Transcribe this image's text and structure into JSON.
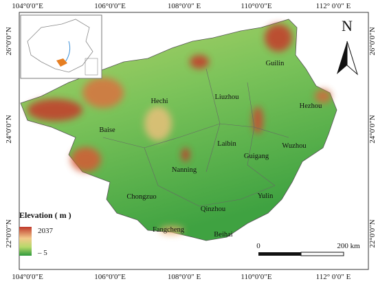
{
  "map": {
    "lon_labels": [
      "104°0′0″E",
      "106°0′0″E",
      "108°0′0″ E",
      "110°0′0″E",
      "112° 0′0″ E"
    ],
    "lat_labels": [
      "26°0′0″N",
      "24°0′0″N",
      "22°0′0″N"
    ],
    "cities": [
      "Guilin",
      "Hechi",
      "Liuzhou",
      "Hezhou",
      "Baise",
      "Laibin",
      "Wuzhou",
      "Guigang",
      "Nanning",
      "Chongzuo",
      "Yulin",
      "Qinzhou",
      "Fangcheng",
      "Beihai"
    ],
    "north": "N",
    "legend": {
      "title": "Elevation ( m )",
      "high": "2037",
      "low": "– 5"
    },
    "scale": {
      "start": "0",
      "end": "200 km"
    }
  }
}
